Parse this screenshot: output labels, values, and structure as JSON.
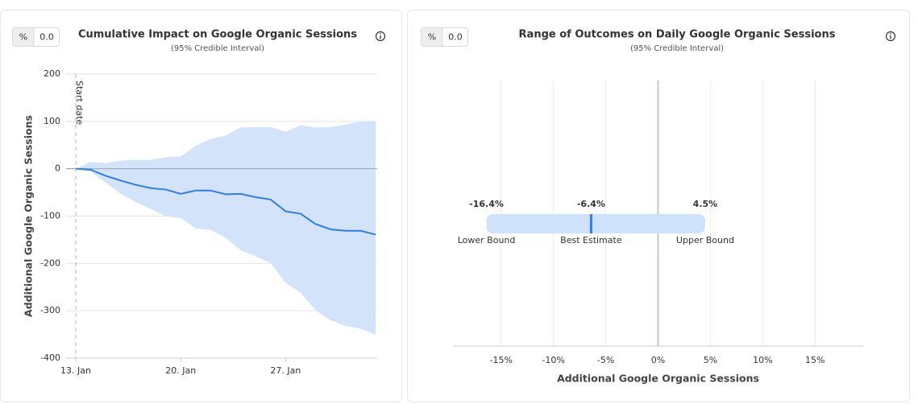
{
  "controls": [
    {
      "options": [
        "%",
        "0.0"
      ]
    },
    {
      "options": [
        "%",
        "0.0"
      ]
    }
  ],
  "chart_data": [
    {
      "type": "line",
      "title": "Cumulative Impact on Google Organic Sessions",
      "subtitle": "(95% Credible Interval)",
      "y_label": "Additional Google Organic Sessions",
      "annotation": "Start date",
      "categories": [
        "13. Jan",
        null,
        null,
        null,
        null,
        null,
        null,
        "20. Jan",
        null,
        null,
        null,
        null,
        null,
        null,
        "27. Jan",
        null,
        null,
        null,
        null,
        null,
        null
      ],
      "values": [
        0,
        -2,
        -15,
        -25,
        -34,
        -41,
        -44,
        -53,
        -46,
        -46,
        -54,
        -53,
        -60,
        -65,
        -90,
        -95,
        -117,
        -128,
        -131,
        -131,
        -139
      ],
      "upper": [
        0,
        14,
        12,
        17,
        19,
        19,
        24,
        26,
        48,
        63,
        70,
        87,
        88,
        88,
        78,
        92,
        87,
        88,
        93,
        100,
        100
      ],
      "lower": [
        0,
        -7,
        -29,
        -53,
        -70,
        -85,
        -100,
        -104,
        -126,
        -129,
        -146,
        -172,
        -185,
        -199,
        -241,
        -262,
        -299,
        -320,
        -332,
        -338,
        -350
      ],
      "color": "#2f7fe6",
      "band_color": "#d3e3fa",
      "ylim": [
        -400,
        200
      ],
      "yticks": [
        -400,
        -300,
        -200,
        -100,
        0,
        100,
        200
      ],
      "grid": true
    },
    {
      "type": "interval",
      "title": "Range of Outcomes on Daily Google Organic Sessions",
      "subtitle": "(95% Credible Interval)",
      "x_label": "Additional Google Organic Sessions",
      "categories": [
        "Lower Bound",
        "Best Estimate",
        "Upper Bound"
      ],
      "values": [
        -16.4,
        -6.4,
        4.5
      ],
      "value_labels": [
        "-16.4%",
        "-6.4%",
        "4.5%"
      ],
      "color": "#2f7fe6",
      "band_color": "#cfe2fb",
      "xlim": [
        -19.6,
        19.6
      ],
      "xticks": [
        {
          "value": -15,
          "label": "-15%"
        },
        {
          "value": -10,
          "label": "-10%"
        },
        {
          "value": -5,
          "label": "-5%"
        },
        {
          "value": 0,
          "label": "0%"
        },
        {
          "value": 5,
          "label": "5%"
        },
        {
          "value": 10,
          "label": "10%"
        },
        {
          "value": 15,
          "label": "15%"
        }
      ],
      "grid": true
    }
  ]
}
